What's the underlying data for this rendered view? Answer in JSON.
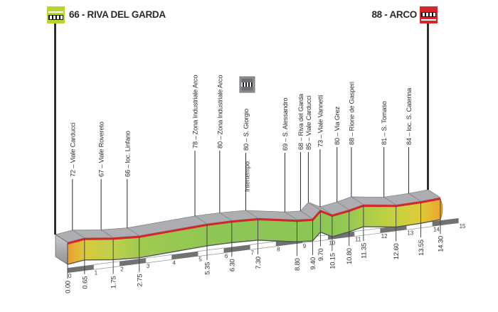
{
  "header": {
    "start": {
      "label": "66 - RIVA DEL GARDA",
      "icon": "start-km-marker-icon",
      "color": "#bcd232"
    },
    "finish": {
      "label": "88 - ARCO",
      "icon": "finish-km-marker-icon",
      "color": "#d5262b"
    }
  },
  "chart_data": {
    "type": "area",
    "subtype": "cycling-stage-final-km-elevation-profile",
    "x_unit": "km",
    "y_unit": "m altitude",
    "x_range": [
      0,
      15
    ],
    "km_scale_ticks": [
      0,
      1,
      2,
      3,
      4,
      5,
      6,
      7,
      8,
      9,
      10,
      11,
      12,
      13,
      14,
      15
    ],
    "points": [
      {
        "km": 0.0,
        "alt": 66,
        "name": "Riva del Garda",
        "km_label": "0.00",
        "role": "start"
      },
      {
        "km": 0.65,
        "alt": 72,
        "name": "Viale Carducci",
        "km_label": "0.65",
        "label": "72 – Viale Carducci"
      },
      {
        "km": 1.75,
        "alt": 67,
        "name": "Viale Rovereto",
        "km_label": "1.75",
        "label": "67 – Viale Rovereto"
      },
      {
        "km": 2.75,
        "alt": 66,
        "name": "loc. Linfano",
        "km_label": "2.75",
        "label": "66 – loc. Linfano"
      },
      {
        "km": 5.35,
        "alt": 78,
        "name": "Zona Industriale Arco",
        "km_label": "5.35",
        "label": "78 – Zona Industriale Arco"
      },
      {
        "km": 6.3,
        "alt": 80,
        "name": "Zona Industriale Arco",
        "km_label": "6.30",
        "label": "80 – Zona Industriale Arco"
      },
      {
        "km": 7.3,
        "alt": 80,
        "name": "S. Giorgio",
        "km_label": "7.30",
        "label": "80 – S. Giorgio",
        "note": "Intertempo"
      },
      {
        "km": 8.8,
        "alt": 69,
        "name": "S. Alessandro",
        "km_label": "8.80",
        "label": "69 – S. Alessandro"
      },
      {
        "km": 9.4,
        "alt": 68,
        "name": "Riva del Garda",
        "km_label": "9.40",
        "label": "68 – Riva del Garda"
      },
      {
        "km": 9.7,
        "alt": 85,
        "name": "Viale Carducci",
        "km_label": "9.70",
        "label": "85 – Viale Carducci"
      },
      {
        "km": 10.15,
        "alt": 73,
        "name": "Viale Vannetti",
        "km_label": "10.15",
        "label": "73 – Viale Vannetti"
      },
      {
        "km": 10.8,
        "alt": 80,
        "name": "Via Grez",
        "km_label": "10.80",
        "label": "80 – Via Grez"
      },
      {
        "km": 11.35,
        "alt": 88,
        "name": "Rione de Gasperi",
        "km_label": "11.35",
        "label": "88 – Rione de Gasperi"
      },
      {
        "km": 12.6,
        "alt": 81,
        "name": "S. Tomaso",
        "km_label": "12.60",
        "label": "81 – S. Tomaso"
      },
      {
        "km": 13.55,
        "alt": 84,
        "name": "loc. S. Caterina",
        "km_label": "13.55",
        "label": "84 – loc. S. Caterina"
      },
      {
        "km": 14.3,
        "alt": 88,
        "name": "Arco",
        "km_label": "14.30",
        "role": "finish"
      }
    ],
    "intermediate_time": {
      "label": "Intertempo",
      "km": 7.3
    },
    "legend_position": "none",
    "grid": false,
    "colors": {
      "road_top": "#acaeb1",
      "road_top_line": "#85878a",
      "red_edge": "#d5262b",
      "face_edge": "#54565a",
      "division_line": "#404244",
      "ruler_dark": "#6f7173",
      "ruler_light": "#fefefe",
      "ruler_border": "#9b9da0",
      "marker_line": "#141414",
      "label_text": "#2f2f31",
      "scale_text": "#3f4142",
      "left_cap_top": "#c9cbcd",
      "left_cap_bottom": "#8f9193",
      "face_by_point": [
        "#ec9e2e",
        "#d9c93a",
        "#bed04a",
        "#a0ca50",
        "#90c754",
        "#8bc656",
        "#8bc656",
        "#8cc755",
        "#8cc755",
        "#8dc754",
        "#8ec753",
        "#96c951",
        "#a9cc4b",
        "#c7d140",
        "#decb38",
        "#eea52f"
      ]
    }
  }
}
